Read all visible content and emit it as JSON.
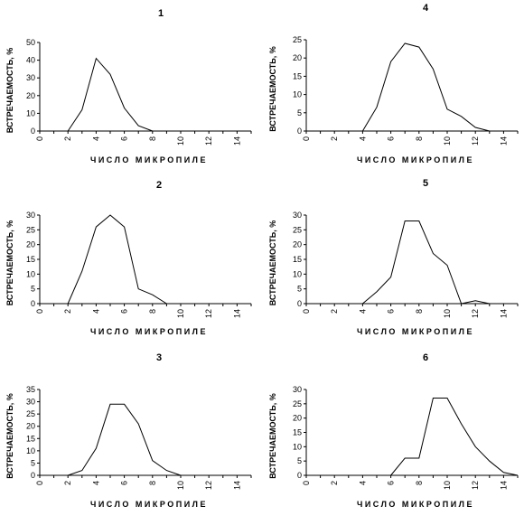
{
  "chart_data": [
    {
      "type": "line",
      "title": "1",
      "xlabel": "ЧИСЛО МИКРОПИЛЕ",
      "ylabel": "ВСТРЕЧАЕМОСТЬ, %",
      "xlim": [
        0,
        15
      ],
      "ylim": [
        0,
        50
      ],
      "xticks": [
        "0",
        "2",
        "4",
        "6",
        "8",
        "10",
        "12",
        "14"
      ],
      "yticks": [
        "0",
        "10",
        "20",
        "30",
        "40",
        "50"
      ],
      "x": [
        2,
        3,
        4,
        5,
        6,
        7,
        8
      ],
      "y": [
        0,
        12,
        41,
        32,
        13,
        3,
        0
      ]
    },
    {
      "type": "line",
      "title": "4",
      "xlabel": "ЧИСЛО МИКРОПИЛЕ",
      "ylabel": "ВСТРЕЧАЕМОСТЬ, %",
      "xlim": [
        0,
        15
      ],
      "ylim": [
        0,
        25
      ],
      "xticks": [
        "0",
        "2",
        "4",
        "6",
        "8",
        "10",
        "12",
        "14"
      ],
      "yticks": [
        "0",
        "5",
        "10",
        "15",
        "20",
        "25"
      ],
      "x": [
        4,
        5,
        6,
        7,
        8,
        9,
        10,
        11,
        12,
        13
      ],
      "y": [
        0,
        6.5,
        19,
        24,
        23,
        17,
        6,
        4,
        1,
        0
      ]
    },
    {
      "type": "line",
      "title": "2",
      "xlabel": "ЧИСЛО МИКРОПИЛЕ",
      "ylabel": "ВСТРЕЧАЕМОСТЬ, %",
      "xlim": [
        0,
        15
      ],
      "ylim": [
        0,
        30
      ],
      "xticks": [
        "0",
        "2",
        "4",
        "6",
        "8",
        "10",
        "12",
        "14"
      ],
      "yticks": [
        "0",
        "5",
        "10",
        "15",
        "20",
        "25",
        "30"
      ],
      "x": [
        2,
        3,
        4,
        5,
        6,
        7,
        8,
        9
      ],
      "y": [
        0,
        11,
        26,
        30,
        26,
        5,
        3,
        0
      ]
    },
    {
      "type": "line",
      "title": "5",
      "xlabel": "ЧИСЛО МИКРОПИЛЕ",
      "ylabel": "ВСТРЕЧАЕМОСТЬ, %",
      "xlim": [
        0,
        15
      ],
      "ylim": [
        0,
        30
      ],
      "xticks": [
        "0",
        "2",
        "4",
        "6",
        "8",
        "10",
        "12",
        "14"
      ],
      "yticks": [
        "0",
        "5",
        "10",
        "15",
        "20",
        "25",
        "30"
      ],
      "x": [
        4,
        5,
        6,
        7,
        8,
        9,
        10,
        11,
        12,
        13
      ],
      "y": [
        0,
        4,
        9,
        28,
        28,
        17,
        13,
        0,
        1,
        0
      ]
    },
    {
      "type": "line",
      "title": "3",
      "xlabel": "ЧИСЛО МИКРОПИЛЕ",
      "ylabel": "ВСТРЕЧАЕМОСТЬ, %",
      "xlim": [
        0,
        15
      ],
      "ylim": [
        0,
        35
      ],
      "xticks": [
        "0",
        "2",
        "4",
        "6",
        "8",
        "10",
        "12",
        "14"
      ],
      "yticks": [
        "0",
        "5",
        "10",
        "15",
        "20",
        "25",
        "30",
        "35"
      ],
      "x": [
        2,
        3,
        4,
        5,
        6,
        7,
        8,
        9,
        10
      ],
      "y": [
        0,
        2,
        11,
        29,
        29,
        21,
        6,
        2,
        0
      ]
    },
    {
      "type": "line",
      "title": "6",
      "xlabel": "ЧИСЛО МИКРОПИЛЕ",
      "ylabel": "ВСТРЕЧАЕМОСТЬ, %",
      "xlim": [
        0,
        15
      ],
      "ylim": [
        0,
        30
      ],
      "xticks": [
        "0",
        "2",
        "4",
        "6",
        "8",
        "10",
        "12",
        "14"
      ],
      "yticks": [
        "0",
        "5",
        "10",
        "15",
        "20",
        "25",
        "30"
      ],
      "x": [
        6,
        7,
        8,
        9,
        10,
        11,
        12,
        13,
        14,
        15
      ],
      "y": [
        0,
        6,
        6,
        27,
        27,
        18,
        10,
        5,
        1,
        0
      ]
    }
  ]
}
